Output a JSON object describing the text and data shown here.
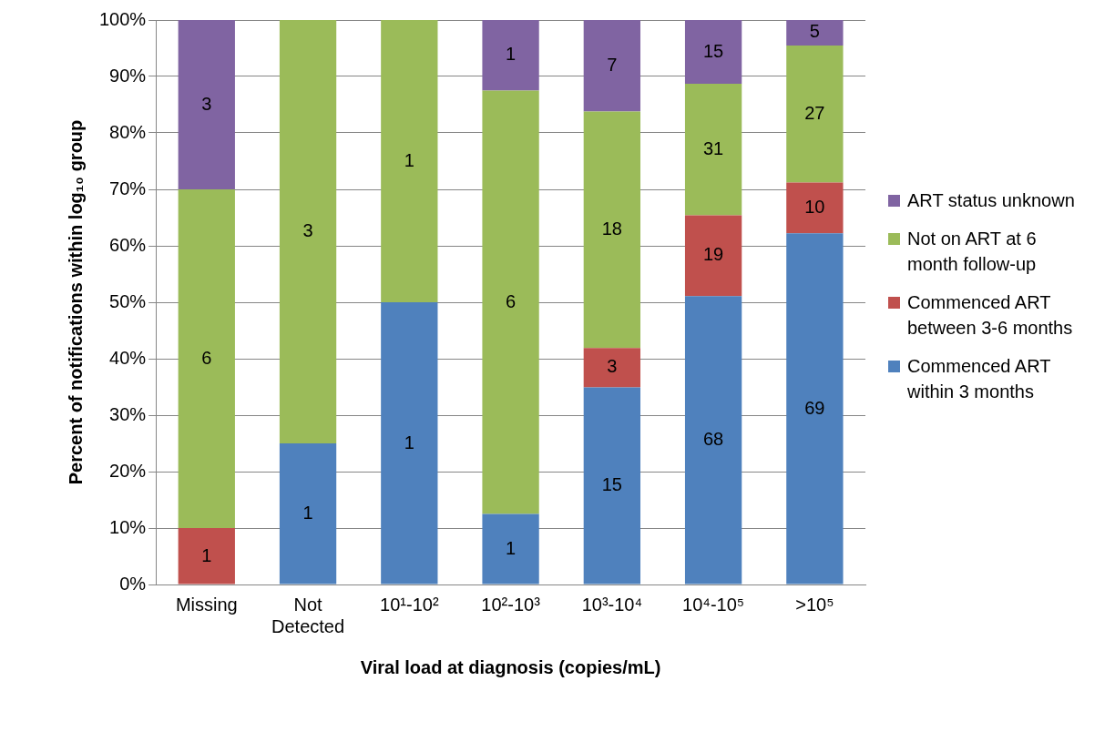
{
  "chart_data": {
    "type": "bar",
    "stacked": true,
    "xlabel": "Viral load at diagnosis (copies/mL)",
    "ylabel": "Percent of notifications within log₁₀ group",
    "categories": [
      "Missing",
      "Not Detected",
      "10¹-10²",
      "10²-10³",
      "10³-10⁴",
      "10⁴-10⁵",
      ">10⁵"
    ],
    "series": [
      {
        "name": "Commenced ART within 3 months",
        "color": "#4f81bd",
        "values": [
          0,
          25,
          50,
          12.5,
          34.9,
          51.1,
          62.2
        ]
      },
      {
        "name": "Commenced ART between 3-6 months",
        "color": "#c0504d",
        "values": [
          10,
          0,
          0,
          0,
          7.0,
          14.3,
          9.0
        ]
      },
      {
        "name": "Not on ART at 6 month follow-up",
        "color": "#9bbb59",
        "values": [
          60,
          75,
          50,
          75,
          41.9,
          23.3,
          24.3
        ]
      },
      {
        "name": "ART status unknown",
        "color": "#8064a2",
        "values": [
          30,
          0,
          0,
          12.5,
          16.2,
          11.3,
          4.5
        ]
      }
    ],
    "annotations": [
      "1",
      "6",
      "3",
      "1",
      "3",
      "1",
      "1",
      "1",
      "6",
      "1",
      "15",
      "3",
      "18",
      "7",
      "68",
      "19",
      "31",
      "15",
      "69",
      "10",
      "27",
      "5"
    ],
    "ylim": [
      0,
      100
    ],
    "yticks": [
      {
        "value": 0,
        "label": "0%"
      },
      {
        "value": 10,
        "label": "10%"
      },
      {
        "value": 20,
        "label": "20%"
      },
      {
        "value": 30,
        "label": "30%"
      },
      {
        "value": 40,
        "label": "40%"
      },
      {
        "value": 50,
        "label": "50%"
      },
      {
        "value": 60,
        "label": "60%"
      },
      {
        "value": 70,
        "label": "70%"
      },
      {
        "value": 80,
        "label": "80%"
      },
      {
        "value": 90,
        "label": "90%"
      },
      {
        "value": 100,
        "label": "100%"
      }
    ],
    "grid": "y",
    "legend": "right"
  }
}
